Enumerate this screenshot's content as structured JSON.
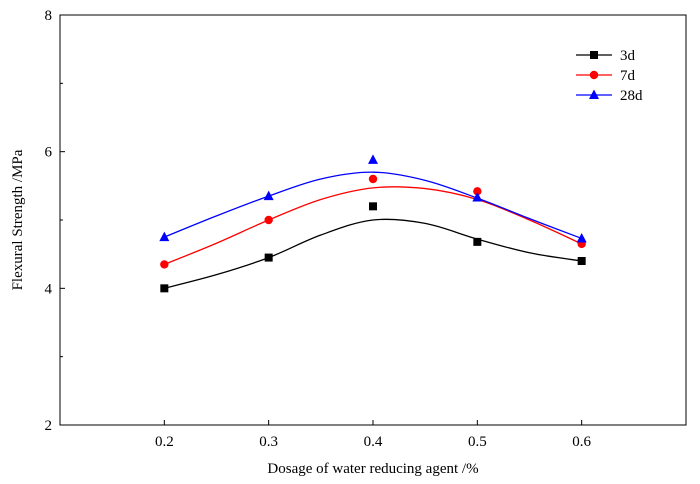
{
  "chart_data": {
    "type": "line",
    "xlabel": "Dosage of water reducing agent /%",
    "ylabel": "Flexural Strength /MPa",
    "xlim": [
      0.1,
      0.7
    ],
    "ylim": [
      2,
      8
    ],
    "xticks": [
      "0.2",
      "0.3",
      "0.4",
      "0.5",
      "0.6"
    ],
    "yticks": [
      "2",
      "4",
      "6",
      "8"
    ],
    "x": [
      0.2,
      0.3,
      0.4,
      0.5,
      0.6
    ],
    "legend_position": "top-right",
    "grid": false,
    "series": [
      {
        "name": "3d",
        "color": "#000000",
        "marker": "square",
        "values": [
          4.0,
          4.45,
          5.2,
          4.68,
          4.4
        ],
        "curve": [
          [
            0.2,
            4.0
          ],
          [
            0.25,
            4.2
          ],
          [
            0.3,
            4.45
          ],
          [
            0.35,
            4.78
          ],
          [
            0.4,
            5.0
          ],
          [
            0.45,
            4.95
          ],
          [
            0.5,
            4.72
          ],
          [
            0.55,
            4.52
          ],
          [
            0.6,
            4.4
          ]
        ]
      },
      {
        "name": "7d",
        "color": "#ff0000",
        "marker": "circle",
        "values": [
          4.35,
          5.0,
          5.6,
          5.42,
          4.65
        ],
        "curve": [
          [
            0.2,
            4.35
          ],
          [
            0.25,
            4.66
          ],
          [
            0.3,
            5.0
          ],
          [
            0.35,
            5.3
          ],
          [
            0.4,
            5.47
          ],
          [
            0.45,
            5.46
          ],
          [
            0.5,
            5.3
          ],
          [
            0.55,
            5.0
          ],
          [
            0.6,
            4.65
          ]
        ]
      },
      {
        "name": "28d",
        "color": "#0000ff",
        "marker": "triangle",
        "values": [
          4.75,
          5.35,
          5.88,
          5.33,
          4.73
        ],
        "curve": [
          [
            0.2,
            4.75
          ],
          [
            0.25,
            5.06
          ],
          [
            0.3,
            5.35
          ],
          [
            0.35,
            5.6
          ],
          [
            0.4,
            5.7
          ],
          [
            0.45,
            5.58
          ],
          [
            0.5,
            5.32
          ],
          [
            0.55,
            5.02
          ],
          [
            0.6,
            4.73
          ]
        ]
      }
    ]
  }
}
